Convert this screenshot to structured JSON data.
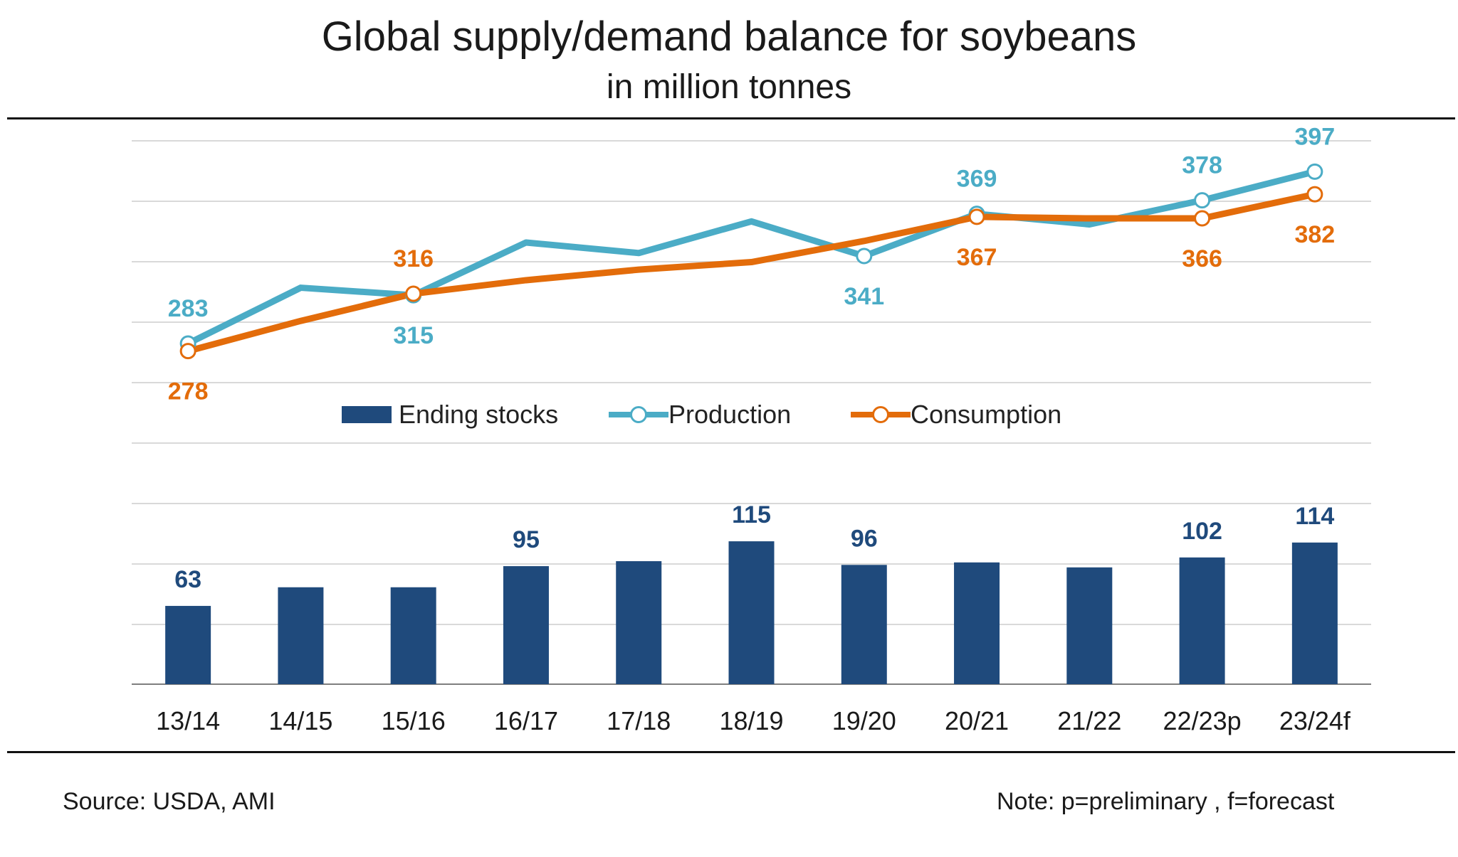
{
  "title": "Global supply/demand balance for soybeans",
  "subtitle": "in million tonnes",
  "source": "Source: USDA, AMI",
  "note": "Note: p=preliminary , f=forecast",
  "colors": {
    "ending_stocks": "#1f4a7c",
    "production": "#4bacc6",
    "consumption": "#e36c0a",
    "grid": "#d9d9d9",
    "axis": "#7f7f7f"
  },
  "legend": [
    {
      "key": "ending_stocks",
      "label": "Ending stocks",
      "kind": "bar"
    },
    {
      "key": "production",
      "label": "Production",
      "kind": "line"
    },
    {
      "key": "consumption",
      "label": "Consumption",
      "kind": "line"
    }
  ],
  "chart_data": {
    "type": "bar",
    "categories": [
      "13/14",
      "14/15",
      "15/16",
      "16/17",
      "17/18",
      "18/19",
      "19/20",
      "20/21",
      "21/22",
      "22/23p",
      "23/24f"
    ],
    "series": [
      {
        "key": "ending_stocks",
        "name": "Ending stocks",
        "type": "bar",
        "values": [
          63,
          78,
          78,
          95,
          99,
          115,
          96,
          98,
          94,
          102,
          114
        ],
        "labeled": [
          0,
          3,
          5,
          6,
          9,
          10
        ]
      },
      {
        "key": "production",
        "name": "Production",
        "type": "line",
        "values": [
          283,
          320,
          315,
          350,
          343,
          364,
          341,
          369,
          362,
          378,
          397
        ],
        "labeled": [
          0,
          2,
          6,
          7,
          9,
          10
        ],
        "markers": [
          0,
          2,
          6,
          7,
          9,
          10
        ]
      },
      {
        "key": "consumption",
        "name": "Consumption",
        "type": "line",
        "values": [
          278,
          298,
          316,
          325,
          332,
          337,
          351,
          367,
          366,
          366,
          382
        ],
        "labeled": [
          0,
          2,
          7,
          9,
          10
        ],
        "markers": [
          0,
          2,
          7,
          9,
          10
        ]
      }
    ],
    "xlabel": "",
    "ylabel": "",
    "grid": true,
    "legend_position": "center",
    "y_axis_labels_shown": false
  }
}
